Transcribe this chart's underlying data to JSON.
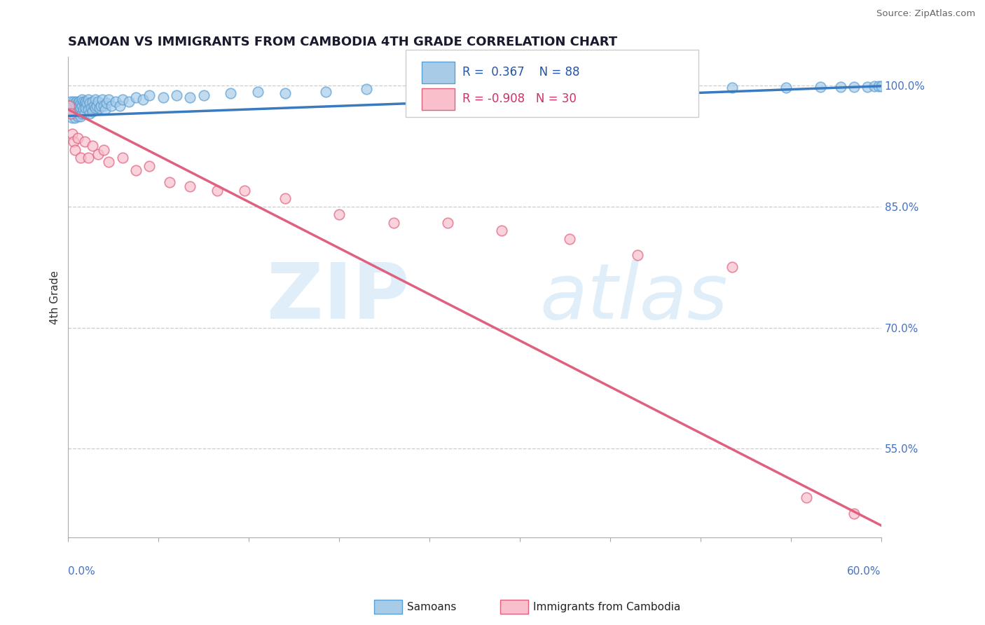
{
  "title": "SAMOAN VS IMMIGRANTS FROM CAMBODIA 4TH GRADE CORRELATION CHART",
  "source": "Source: ZipAtlas.com",
  "ylabel": "4th Grade",
  "ylabel_right_labels": [
    "100.0%",
    "85.0%",
    "70.0%",
    "55.0%"
  ],
  "ylabel_right_values": [
    1.0,
    0.85,
    0.7,
    0.55
  ],
  "blue_R": 0.367,
  "blue_N": 88,
  "pink_R": -0.908,
  "pink_N": 30,
  "blue_color": "#a8cce8",
  "blue_edge_color": "#5a9fd4",
  "blue_line_color": "#3a7abf",
  "pink_color": "#f9c0cc",
  "pink_edge_color": "#e06080",
  "pink_line_color": "#e06080",
  "xmin": 0.0,
  "xmax": 0.6,
  "ymin": 0.44,
  "ymax": 1.035,
  "blue_scatter_x": [
    0.001,
    0.001,
    0.002,
    0.002,
    0.002,
    0.003,
    0.003,
    0.003,
    0.003,
    0.004,
    0.004,
    0.004,
    0.005,
    0.005,
    0.005,
    0.005,
    0.006,
    0.006,
    0.006,
    0.007,
    0.007,
    0.007,
    0.008,
    0.008,
    0.008,
    0.009,
    0.009,
    0.009,
    0.01,
    0.01,
    0.01,
    0.011,
    0.011,
    0.012,
    0.012,
    0.013,
    0.013,
    0.014,
    0.015,
    0.015,
    0.016,
    0.016,
    0.017,
    0.018,
    0.018,
    0.019,
    0.02,
    0.02,
    0.021,
    0.022,
    0.023,
    0.024,
    0.025,
    0.026,
    0.027,
    0.028,
    0.03,
    0.032,
    0.035,
    0.038,
    0.04,
    0.045,
    0.05,
    0.055,
    0.06,
    0.07,
    0.08,
    0.09,
    0.1,
    0.12,
    0.14,
    0.16,
    0.19,
    0.22,
    0.26,
    0.3,
    0.34,
    0.39,
    0.44,
    0.49,
    0.53,
    0.555,
    0.57,
    0.58,
    0.59,
    0.595,
    0.598,
    0.6
  ],
  "blue_scatter_y": [
    0.97,
    0.975,
    0.968,
    0.98,
    0.965,
    0.975,
    0.96,
    0.972,
    0.968,
    0.98,
    0.975,
    0.965,
    0.978,
    0.972,
    0.96,
    0.968,
    0.98,
    0.975,
    0.965,
    0.978,
    0.972,
    0.962,
    0.98,
    0.975,
    0.968,
    0.978,
    0.972,
    0.962,
    0.982,
    0.975,
    0.965,
    0.98,
    0.97,
    0.978,
    0.965,
    0.98,
    0.972,
    0.978,
    0.982,
    0.97,
    0.978,
    0.965,
    0.972,
    0.98,
    0.968,
    0.975,
    0.982,
    0.972,
    0.975,
    0.98,
    0.972,
    0.975,
    0.982,
    0.975,
    0.97,
    0.978,
    0.982,
    0.975,
    0.98,
    0.975,
    0.982,
    0.98,
    0.985,
    0.982,
    0.988,
    0.985,
    0.988,
    0.985,
    0.988,
    0.99,
    0.992,
    0.99,
    0.992,
    0.995,
    0.992,
    0.995,
    0.995,
    0.997,
    0.995,
    0.997,
    0.997,
    0.998,
    0.998,
    0.998,
    0.998,
    0.999,
    0.999,
    0.999
  ],
  "pink_scatter_x": [
    0.001,
    0.002,
    0.003,
    0.004,
    0.005,
    0.007,
    0.009,
    0.012,
    0.015,
    0.018,
    0.022,
    0.026,
    0.03,
    0.04,
    0.05,
    0.06,
    0.075,
    0.09,
    0.11,
    0.13,
    0.16,
    0.2,
    0.24,
    0.28,
    0.32,
    0.37,
    0.42,
    0.49,
    0.545,
    0.58
  ],
  "pink_scatter_y": [
    0.975,
    0.965,
    0.94,
    0.93,
    0.92,
    0.935,
    0.91,
    0.93,
    0.91,
    0.925,
    0.915,
    0.92,
    0.905,
    0.91,
    0.895,
    0.9,
    0.88,
    0.875,
    0.87,
    0.87,
    0.86,
    0.84,
    0.83,
    0.83,
    0.82,
    0.81,
    0.79,
    0.775,
    0.49,
    0.47
  ],
  "blue_trend_x": [
    0.0,
    0.6
  ],
  "blue_trend_y": [
    0.962,
    0.999
  ],
  "pink_trend_x": [
    0.0,
    0.6
  ],
  "pink_trend_y": [
    0.97,
    0.455
  ]
}
